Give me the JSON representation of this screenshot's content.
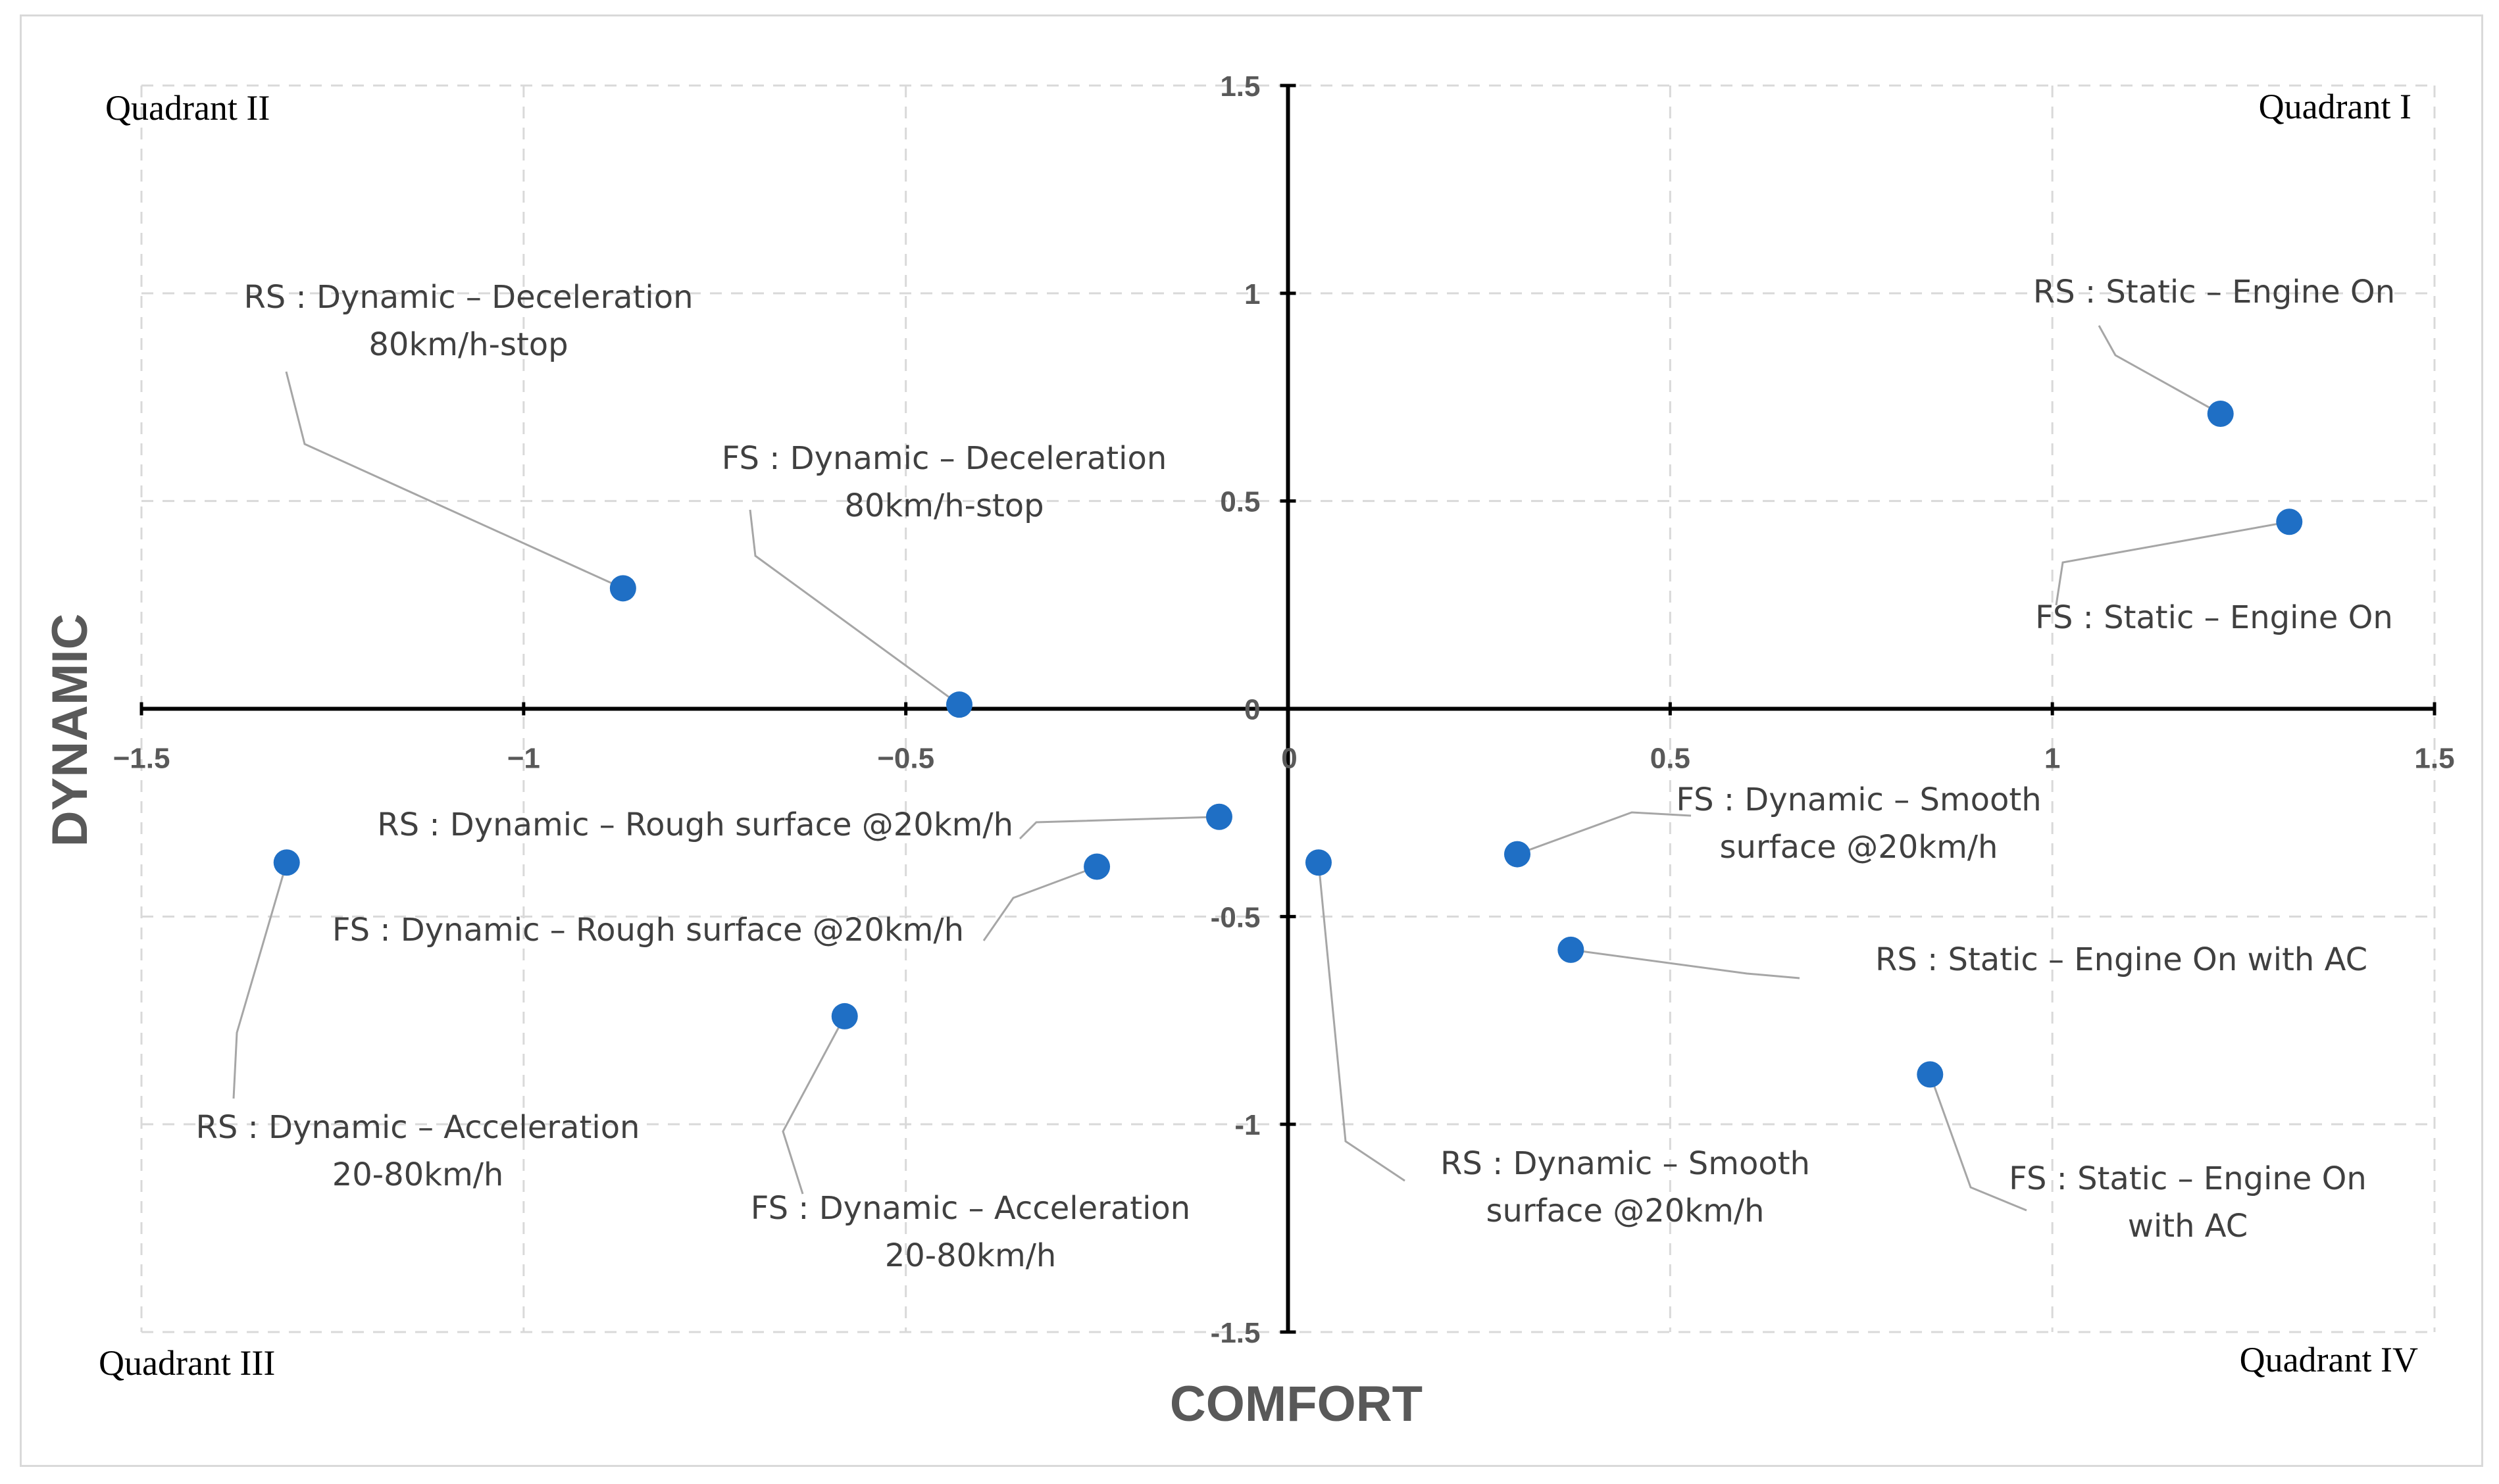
{
  "chart_data": {
    "type": "scatter",
    "xlabel": "COMFORT",
    "ylabel": "DYNAMIC",
    "xlim": [
      -1.5,
      1.5
    ],
    "ylim": [
      -1.5,
      1.5
    ],
    "grid": true,
    "x_ticks": [
      "−1.5",
      "−1",
      "−0.5",
      "0",
      "0.5",
      "1",
      "1.5"
    ],
    "y_ticks": [
      "1.5",
      "1",
      "0.5",
      "0",
      "-0.5",
      "-1",
      "-1.5"
    ],
    "quadrants": [
      "Quadrant I",
      "Quadrant II",
      "Quadrant III",
      "Quadrant IV"
    ],
    "point_color": "#1f6fc5",
    "points": [
      {
        "lines": [
          "RS : Static – Engine On"
        ],
        "x": 1.22,
        "y": 0.71
      },
      {
        "lines": [
          "FS : Static – Engine On"
        ],
        "x": 1.31,
        "y": 0.45
      },
      {
        "lines": [
          "RS : Dynamic – Deceleration",
          "80km/h-stop"
        ],
        "x": -0.87,
        "y": 0.29
      },
      {
        "lines": [
          "FS : Dynamic – Deceleration",
          "80km/h-stop"
        ],
        "x": -0.43,
        "y": 0.01
      },
      {
        "lines": [
          "RS : Dynamic – Rough surface @20km/h"
        ],
        "x": -0.09,
        "y": -0.26
      },
      {
        "lines": [
          "FS : Dynamic – Rough surface @20km/h"
        ],
        "x": -0.25,
        "y": -0.38
      },
      {
        "lines": [
          "RS : Dynamic – Acceleration",
          "20-80km/h"
        ],
        "x": -1.31,
        "y": -0.37
      },
      {
        "lines": [
          "FS : Dynamic – Acceleration",
          "20-80km/h"
        ],
        "x": -0.58,
        "y": -0.74
      },
      {
        "lines": [
          "FS : Dynamic – Smooth",
          "surface @20km/h"
        ],
        "x": 0.3,
        "y": -0.35
      },
      {
        "lines": [
          "RS : Dynamic – Smooth",
          "surface @20km/h"
        ],
        "x": 0.04,
        "y": -0.37
      },
      {
        "lines": [
          "RS : Static – Engine On with AC"
        ],
        "x": 0.37,
        "y": -0.58
      },
      {
        "lines": [
          "FS : Static – Engine On",
          "with AC"
        ],
        "x": 0.84,
        "y": -0.88
      }
    ]
  }
}
